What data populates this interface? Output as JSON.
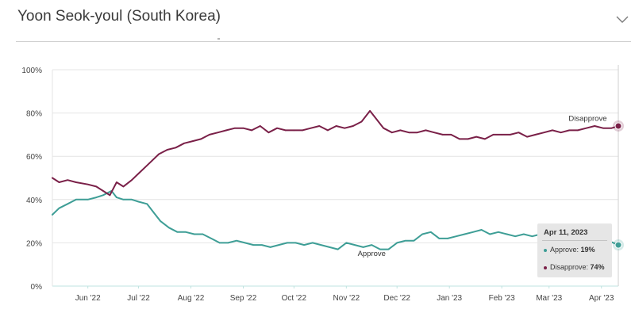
{
  "header": {
    "title": "Yoon Seok-youl (South Korea)"
  },
  "colors": {
    "approve": "#3e9e96",
    "disapprove": "#7a2048",
    "grid": "#e4e4e4",
    "axis": "#bfe3e0",
    "tooltip_bg": "#e6e6e6"
  },
  "tooltip": {
    "date": "Apr 11, 2023",
    "approve_label": "Approve:",
    "approve_value": "19%",
    "disapprove_label": "Disapprove:",
    "disapprove_value": "74%"
  },
  "chart_data": {
    "type": "line",
    "title": "Yoon Seok-youl (South Korea)",
    "xlabel": "",
    "ylabel": "",
    "grid": true,
    "ylim": [
      0,
      100
    ],
    "xlim": [
      "2022-05-11",
      "2023-04-11"
    ],
    "yticks": [
      "0%",
      "20%",
      "40%",
      "60%",
      "80%",
      "100%"
    ],
    "yticks_values": [
      0,
      20,
      40,
      60,
      80,
      100
    ],
    "xticks": [
      {
        "label": "Jun '22",
        "date": "2022-06-01"
      },
      {
        "label": "Jul '22",
        "date": "2022-07-01"
      },
      {
        "label": "Aug '22",
        "date": "2022-08-01"
      },
      {
        "label": "Sep '22",
        "date": "2022-09-01"
      },
      {
        "label": "Oct '22",
        "date": "2022-10-01"
      },
      {
        "label": "Nov '22",
        "date": "2022-11-01"
      },
      {
        "label": "Dec '22",
        "date": "2022-12-01"
      },
      {
        "label": "Jan '23",
        "date": "2023-01-01"
      },
      {
        "label": "Feb '23",
        "date": "2023-02-01"
      },
      {
        "label": "Mar '23",
        "date": "2023-03-01"
      },
      {
        "label": "Apr '23",
        "date": "2023-04-01"
      }
    ],
    "series": [
      {
        "name": "Approve",
        "color": "#3e9e96",
        "points": [
          [
            "2022-05-11",
            33
          ],
          [
            "2022-05-15",
            36
          ],
          [
            "2022-05-20",
            38
          ],
          [
            "2022-05-25",
            40
          ],
          [
            "2022-06-01",
            40
          ],
          [
            "2022-06-06",
            41
          ],
          [
            "2022-06-10",
            42
          ],
          [
            "2022-06-15",
            44
          ],
          [
            "2022-06-18",
            41
          ],
          [
            "2022-06-22",
            40
          ],
          [
            "2022-06-27",
            40
          ],
          [
            "2022-07-01",
            39
          ],
          [
            "2022-07-06",
            38
          ],
          [
            "2022-07-10",
            34
          ],
          [
            "2022-07-14",
            30
          ],
          [
            "2022-07-19",
            27
          ],
          [
            "2022-07-24",
            25
          ],
          [
            "2022-07-29",
            25
          ],
          [
            "2022-08-03",
            24
          ],
          [
            "2022-08-08",
            24
          ],
          [
            "2022-08-13",
            22
          ],
          [
            "2022-08-18",
            20
          ],
          [
            "2022-08-23",
            20
          ],
          [
            "2022-08-28",
            21
          ],
          [
            "2022-09-02",
            20
          ],
          [
            "2022-09-07",
            19
          ],
          [
            "2022-09-12",
            19
          ],
          [
            "2022-09-17",
            18
          ],
          [
            "2022-09-22",
            19
          ],
          [
            "2022-09-27",
            20
          ],
          [
            "2022-10-02",
            20
          ],
          [
            "2022-10-07",
            19
          ],
          [
            "2022-10-12",
            20
          ],
          [
            "2022-10-17",
            19
          ],
          [
            "2022-10-22",
            18
          ],
          [
            "2022-10-27",
            17
          ],
          [
            "2022-11-01",
            20
          ],
          [
            "2022-11-06",
            19
          ],
          [
            "2022-11-11",
            18
          ],
          [
            "2022-11-16",
            19
          ],
          [
            "2022-11-21",
            17
          ],
          [
            "2022-11-26",
            17
          ],
          [
            "2022-12-01",
            20
          ],
          [
            "2022-12-06",
            21
          ],
          [
            "2022-12-11",
            21
          ],
          [
            "2022-12-16",
            24
          ],
          [
            "2022-12-21",
            25
          ],
          [
            "2022-12-26",
            22
          ],
          [
            "2022-12-31",
            22
          ],
          [
            "2023-01-05",
            23
          ],
          [
            "2023-01-10",
            24
          ],
          [
            "2023-01-15",
            25
          ],
          [
            "2023-01-20",
            26
          ],
          [
            "2023-01-25",
            24
          ],
          [
            "2023-01-30",
            25
          ],
          [
            "2023-02-04",
            24
          ],
          [
            "2023-02-09",
            23
          ],
          [
            "2023-02-14",
            24
          ],
          [
            "2023-02-19",
            23
          ],
          [
            "2023-02-24",
            24
          ],
          [
            "2023-03-01",
            23
          ],
          [
            "2023-03-06",
            24
          ],
          [
            "2023-03-11",
            22
          ],
          [
            "2023-03-16",
            22
          ],
          [
            "2023-03-21",
            23
          ],
          [
            "2023-03-26",
            23
          ],
          [
            "2023-03-31",
            22
          ],
          [
            "2023-04-05",
            21
          ],
          [
            "2023-04-11",
            19
          ]
        ]
      },
      {
        "name": "Disapprove",
        "color": "#7a2048",
        "points": [
          [
            "2022-05-11",
            50
          ],
          [
            "2022-05-15",
            48
          ],
          [
            "2022-05-20",
            49
          ],
          [
            "2022-05-25",
            48
          ],
          [
            "2022-06-01",
            47
          ],
          [
            "2022-06-06",
            46
          ],
          [
            "2022-06-10",
            44
          ],
          [
            "2022-06-14",
            42
          ],
          [
            "2022-06-18",
            48
          ],
          [
            "2022-06-22",
            46
          ],
          [
            "2022-06-27",
            49
          ],
          [
            "2022-07-01",
            52
          ],
          [
            "2022-07-05",
            55
          ],
          [
            "2022-07-09",
            58
          ],
          [
            "2022-07-13",
            61
          ],
          [
            "2022-07-18",
            63
          ],
          [
            "2022-07-23",
            64
          ],
          [
            "2022-07-28",
            66
          ],
          [
            "2022-08-02",
            67
          ],
          [
            "2022-08-07",
            68
          ],
          [
            "2022-08-12",
            70
          ],
          [
            "2022-08-17",
            71
          ],
          [
            "2022-08-22",
            72
          ],
          [
            "2022-08-27",
            73
          ],
          [
            "2022-09-01",
            73
          ],
          [
            "2022-09-06",
            72
          ],
          [
            "2022-09-11",
            74
          ],
          [
            "2022-09-16",
            71
          ],
          [
            "2022-09-21",
            73
          ],
          [
            "2022-09-26",
            72
          ],
          [
            "2022-10-01",
            72
          ],
          [
            "2022-10-06",
            72
          ],
          [
            "2022-10-11",
            73
          ],
          [
            "2022-10-16",
            74
          ],
          [
            "2022-10-21",
            72
          ],
          [
            "2022-10-26",
            74
          ],
          [
            "2022-10-31",
            73
          ],
          [
            "2022-11-05",
            74
          ],
          [
            "2022-11-10",
            76
          ],
          [
            "2022-11-15",
            81
          ],
          [
            "2022-11-19",
            77
          ],
          [
            "2022-11-23",
            73
          ],
          [
            "2022-11-28",
            71
          ],
          [
            "2022-12-03",
            72
          ],
          [
            "2022-12-08",
            71
          ],
          [
            "2022-12-13",
            71
          ],
          [
            "2022-12-18",
            72
          ],
          [
            "2022-12-23",
            71
          ],
          [
            "2022-12-28",
            70
          ],
          [
            "2023-01-02",
            70
          ],
          [
            "2023-01-07",
            68
          ],
          [
            "2023-01-12",
            68
          ],
          [
            "2023-01-17",
            69
          ],
          [
            "2023-01-22",
            68
          ],
          [
            "2023-01-27",
            70
          ],
          [
            "2023-02-01",
            70
          ],
          [
            "2023-02-06",
            70
          ],
          [
            "2023-02-11",
            71
          ],
          [
            "2023-02-16",
            69
          ],
          [
            "2023-02-21",
            70
          ],
          [
            "2023-02-26",
            71
          ],
          [
            "2023-03-03",
            72
          ],
          [
            "2023-03-08",
            71
          ],
          [
            "2023-03-13",
            72
          ],
          [
            "2023-03-18",
            72
          ],
          [
            "2023-03-23",
            73
          ],
          [
            "2023-03-28",
            74
          ],
          [
            "2023-04-02",
            73
          ],
          [
            "2023-04-07",
            73
          ],
          [
            "2023-04-11",
            74
          ]
        ]
      }
    ],
    "annotations": [
      {
        "text": "Approve",
        "series": "Approve",
        "date": "2022-11-16"
      },
      {
        "text": "Disapprove",
        "series": "Disapprove",
        "date": "2023-04-05"
      }
    ]
  }
}
